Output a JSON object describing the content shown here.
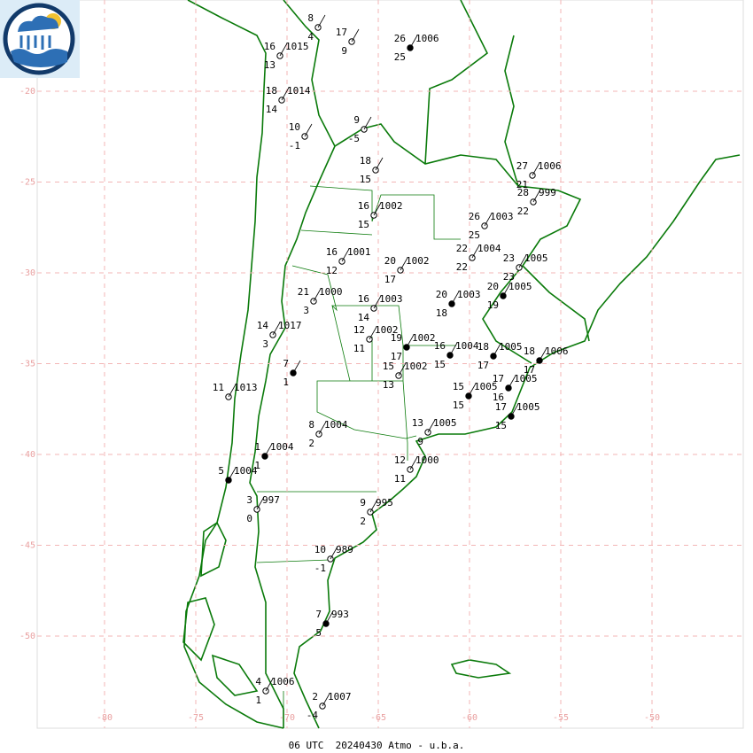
{
  "lat_labels": [
    -20,
    -25,
    -30,
    -35,
    -40,
    -45,
    -50
  ],
  "lon_labels": [
    -80,
    -75,
    -70,
    -65,
    -60,
    -55,
    -50
  ],
  "footer": "06 UTC  20240430 Atmo - u.b.a.",
  "stations": [
    {
      "temp": 8,
      "dewpoint": 4
    },
    {
      "temp": 17,
      "dewpoint": 9
    },
    {
      "temp": 26,
      "pressure": 1006,
      "dewpoint": 25
    },
    {
      "temp": 16,
      "pressure": 1015,
      "dewpoint": 13
    },
    {
      "temp": 18,
      "pressure": 1014,
      "dewpoint": 14
    },
    {
      "temp": 10,
      "dewpoint": -1
    },
    {
      "temp": 9,
      "dewpoint": -5
    },
    {
      "temp": 18,
      "dewpoint": 15
    },
    {
      "temp": 27,
      "pressure": 1006,
      "dewpoint": 21
    },
    {
      "temp": 28,
      "pressure": 999,
      "dewpoint": 22
    },
    {
      "temp": 16,
      "pressure": 1002,
      "dewpoint": 15
    },
    {
      "temp": 26,
      "pressure": 1003,
      "dewpoint": 25
    },
    {
      "temp": 22,
      "pressure": 1004,
      "dewpoint": 22
    },
    {
      "temp": 16,
      "pressure": 1001,
      "dewpoint": 12
    },
    {
      "temp": 20,
      "pressure": 1002,
      "dewpoint": 17
    },
    {
      "temp": 23,
      "pressure": 1005,
      "dewpoint": 23
    },
    {
      "temp": 21,
      "pressure": 1000,
      "dewpoint": 3
    },
    {
      "temp": 16,
      "pressure": 1003,
      "dewpoint": 14
    },
    {
      "temp": 20,
      "pressure": 1003,
      "dewpoint": 18
    },
    {
      "temp": 20,
      "pressure": 1005,
      "dewpoint": 19
    },
    {
      "temp": 14,
      "pressure": 1017,
      "dewpoint": 3
    },
    {
      "temp": 12,
      "pressure": 1002,
      "dewpoint": 11
    },
    {
      "temp": 19,
      "pressure": 1002,
      "dewpoint": 17
    },
    {
      "temp": 16,
      "pressure": 1004,
      "dewpoint": 15
    },
    {
      "temp": 18,
      "pressure": 1005,
      "dewpoint": 17
    },
    {
      "temp": 18,
      "pressure": 1006,
      "dewpoint": 17
    },
    {
      "temp": 7,
      "dewpoint": 1
    },
    {
      "temp": 15,
      "pressure": 1002,
      "dewpoint": 13
    },
    {
      "temp": 15,
      "pressure": 1005,
      "dewpoint": 15
    },
    {
      "temp": 17,
      "pressure": 1005,
      "dewpoint": 16
    },
    {
      "temp": 11,
      "pressure": 1013
    },
    {
      "temp": 17,
      "pressure": 1005,
      "dewpoint": 15
    },
    {
      "temp": 8,
      "pressure": 1004,
      "dewpoint": 2
    },
    {
      "temp": 13,
      "pressure": 1005,
      "dewpoint": 9
    },
    {
      "temp": 1,
      "pressure": 1004,
      "dewpoint": 1
    },
    {
      "temp": 12,
      "pressure": 1000,
      "dewpoint": 11
    },
    {
      "temp": 5,
      "pressure": 1004
    },
    {
      "temp": 3,
      "pressure": 997,
      "dewpoint": 0
    },
    {
      "temp": 9,
      "pressure": 995,
      "dewpoint": 2
    },
    {
      "temp": 10,
      "pressure": 989,
      "dewpoint": -1
    },
    {
      "temp": 7,
      "pressure": 993,
      "dewpoint": 5
    },
    {
      "temp": 4,
      "pressure": 1006,
      "dewpoint": 1
    },
    {
      "temp": 2,
      "pressure": 1007,
      "dewpoint": -4
    }
  ]
}
